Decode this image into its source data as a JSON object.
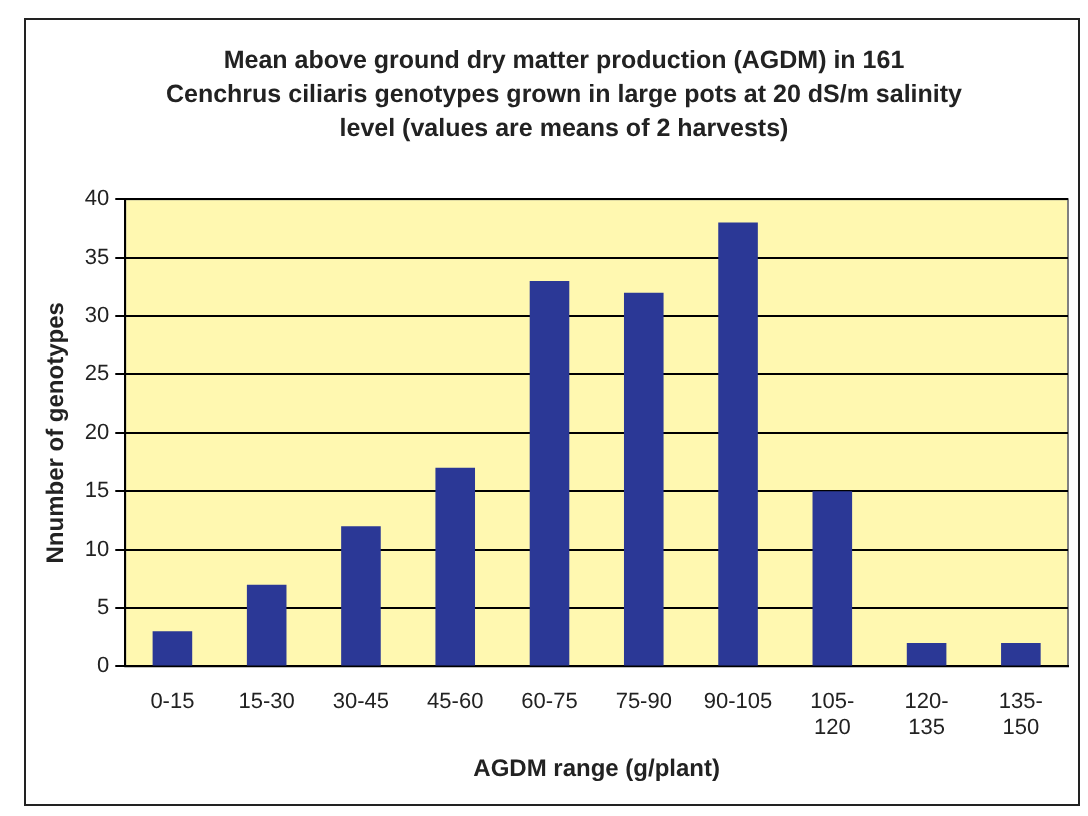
{
  "chart_data": {
    "type": "histogram",
    "title": "Mean above ground dry matter production (AGDM) in 161 Cenchrus ciliaris genotypes grown in large pots at 20 dS/m salinity level (values are means of 2 harvests)",
    "xlabel": "AGDM range (g/plant)",
    "ylabel": "Nnumber of genotypes",
    "categories": [
      "0-15",
      "15-30",
      "30-45",
      "45-60",
      "60-75",
      "75-90",
      "90-105",
      "105-120",
      "120-135",
      "135-150"
    ],
    "values": [
      3,
      7,
      12,
      17,
      33,
      32,
      38,
      15,
      2,
      2
    ],
    "color": "#2b3896",
    "ylim": [
      0,
      40
    ],
    "yticks": [
      0,
      5,
      10,
      15,
      20,
      25,
      30,
      35,
      40
    ],
    "grid": "y",
    "legend": false
  }
}
